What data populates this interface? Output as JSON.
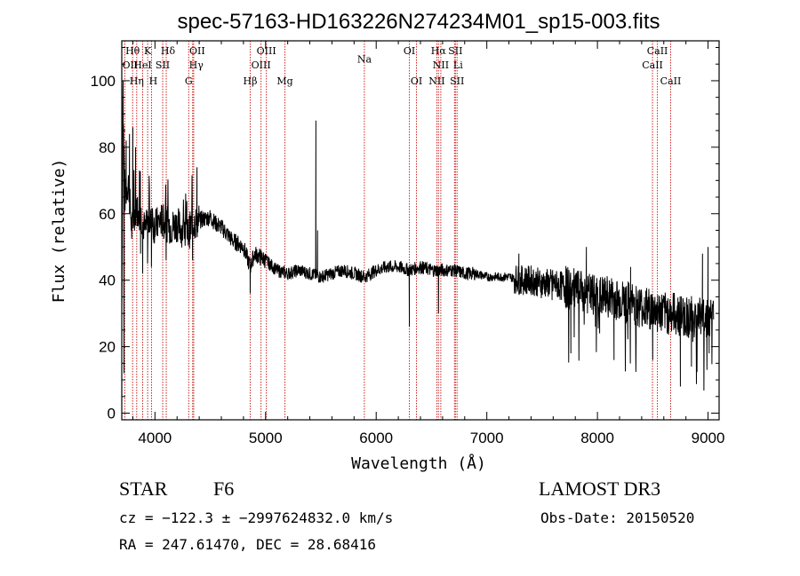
{
  "chart_data": {
    "type": "line",
    "title": "spec-57163-HD163226N274234M01_sp15-003.fits",
    "xlabel": "Wavelength (Å)",
    "ylabel": "Flux (relative)",
    "xlim": [
      3700,
      9100
    ],
    "ylim": [
      -2,
      112
    ],
    "x_ticks": [
      4000,
      5000,
      6000,
      7000,
      8000,
      9000
    ],
    "y_ticks": [
      0,
      20,
      40,
      60,
      80,
      100
    ],
    "grid": false,
    "line_color": "#000000",
    "marker_color": "#cc2222",
    "spectrum": {
      "anchors": [
        [
          3700,
          30
        ],
        [
          3710,
          92
        ],
        [
          3730,
          65
        ],
        [
          3760,
          70
        ],
        [
          3790,
          55
        ],
        [
          3830,
          62
        ],
        [
          3870,
          60
        ],
        [
          3910,
          55
        ],
        [
          3950,
          58
        ],
        [
          4000,
          56
        ],
        [
          4050,
          58
        ],
        [
          4100,
          57
        ],
        [
          4150,
          56
        ],
        [
          4200,
          57
        ],
        [
          4250,
          55
        ],
        [
          4300,
          54
        ],
        [
          4340,
          57
        ],
        [
          4400,
          58
        ],
        [
          4500,
          59
        ],
        [
          4550,
          57
        ],
        [
          4600,
          56
        ],
        [
          4700,
          52
        ],
        [
          4800,
          50
        ],
        [
          4861,
          44
        ],
        [
          4900,
          48
        ],
        [
          5000,
          46
        ],
        [
          5100,
          43
        ],
        [
          5200,
          42
        ],
        [
          5300,
          43
        ],
        [
          5400,
          42
        ],
        [
          5500,
          41
        ],
        [
          5600,
          42
        ],
        [
          5700,
          43
        ],
        [
          5800,
          42
        ],
        [
          5900,
          41
        ],
        [
          6000,
          43
        ],
        [
          6100,
          44
        ],
        [
          6200,
          44
        ],
        [
          6300,
          43
        ],
        [
          6400,
          44
        ],
        [
          6500,
          43
        ],
        [
          6600,
          43
        ],
        [
          6700,
          43
        ],
        [
          6800,
          42
        ],
        [
          6900,
          42
        ],
        [
          7000,
          41
        ],
        [
          7100,
          41
        ],
        [
          7200,
          41
        ],
        [
          7300,
          40
        ],
        [
          7400,
          40
        ],
        [
          7500,
          39
        ],
        [
          7600,
          39
        ],
        [
          7700,
          38
        ],
        [
          7800,
          37
        ],
        [
          7900,
          36
        ],
        [
          8000,
          35
        ],
        [
          8100,
          35
        ],
        [
          8200,
          34
        ],
        [
          8300,
          33
        ],
        [
          8400,
          32
        ],
        [
          8500,
          31
        ],
        [
          8600,
          30
        ],
        [
          8700,
          30
        ],
        [
          8800,
          29
        ],
        [
          8900,
          29
        ],
        [
          9000,
          29
        ],
        [
          9050,
          28
        ]
      ],
      "features": [
        [
          3712,
          100
        ],
        [
          3720,
          12
        ],
        [
          3740,
          82
        ],
        [
          3770,
          84
        ],
        [
          3800,
          86
        ],
        [
          3825,
          80
        ],
        [
          3860,
          73
        ],
        [
          3870,
          48
        ],
        [
          3889,
          42
        ],
        [
          3933,
          45
        ],
        [
          3968,
          44
        ],
        [
          4101,
          46
        ],
        [
          4340,
          46
        ],
        [
          4380,
          74
        ],
        [
          4861,
          36
        ],
        [
          5455,
          88
        ],
        [
          5470,
          55
        ],
        [
          6300,
          26
        ],
        [
          6563,
          30
        ],
        [
          7290,
          48
        ],
        [
          7300,
          36
        ],
        [
          7590,
          34
        ],
        [
          7760,
          18
        ],
        [
          7900,
          50
        ],
        [
          8020,
          24
        ],
        [
          8150,
          16
        ],
        [
          8300,
          44
        ],
        [
          8350,
          22
        ],
        [
          8500,
          16
        ],
        [
          8650,
          30
        ],
        [
          8750,
          8
        ],
        [
          8850,
          14
        ],
        [
          8950,
          48
        ],
        [
          9000,
          50
        ],
        [
          9010,
          18
        ]
      ]
    },
    "lines": [
      {
        "label": "Hθ",
        "x": 3798,
        "row": 1,
        "dx": 0
      },
      {
        "label": "K",
        "x": 3934,
        "row": 1,
        "dx": 0
      },
      {
        "label": "Hδ",
        "x": 4102,
        "row": 1,
        "dx": 2
      },
      {
        "label": "OII",
        "x": 4350,
        "row": 1,
        "dx": 4
      },
      {
        "label": "OIII",
        "x": 5007,
        "row": 1,
        "dx": 0
      },
      {
        "label": "OI",
        "x": 6300,
        "row": 1,
        "dx": 0
      },
      {
        "label": "Hα",
        "x": 6563,
        "row": 1,
        "dx": 0
      },
      {
        "label": "SII",
        "x": 6716,
        "row": 1,
        "dx": 0
      },
      {
        "label": "CaII",
        "x": 8542,
        "row": 1,
        "dx": 0
      },
      {
        "label": "OII",
        "x": 3727,
        "row": 2,
        "dx": 6
      },
      {
        "label": "HeI",
        "x": 3889,
        "row": 2,
        "dx": 0
      },
      {
        "label": "SII",
        "x": 4070,
        "row": 2,
        "dx": 0
      },
      {
        "label": "Hγ",
        "x": 4341,
        "row": 2,
        "dx": 4
      },
      {
        "label": "OIII",
        "x": 4959,
        "row": 2,
        "dx": 0
      },
      {
        "label": "NII",
        "x": 6584,
        "row": 2,
        "dx": 0
      },
      {
        "label": "Li",
        "x": 6708,
        "row": 2,
        "dx": 4
      },
      {
        "label": "CaII",
        "x": 8498,
        "row": 2,
        "dx": 0
      },
      {
        "label": "Hη",
        "x": 3835,
        "row": 3,
        "dx": 0
      },
      {
        "label": "H",
        "x": 3969,
        "row": 3,
        "dx": 2
      },
      {
        "label": "G",
        "x": 4305,
        "row": 3,
        "dx": 0
      },
      {
        "label": "Hβ",
        "x": 4861,
        "row": 3,
        "dx": 0
      },
      {
        "label": "Mg",
        "x": 5175,
        "row": 3,
        "dx": 0
      },
      {
        "label": "Na",
        "x": 5893,
        "row": 1.55,
        "dx": 0
      },
      {
        "label": "OI",
        "x": 6364,
        "row": 3,
        "dx": 0
      },
      {
        "label": "NII",
        "x": 6548,
        "row": 3,
        "dx": 0
      },
      {
        "label": "SII",
        "x": 6731,
        "row": 3,
        "dx": 0
      },
      {
        "label": "CaII",
        "x": 8662,
        "row": 3,
        "dx": 0
      }
    ]
  },
  "info": {
    "object_class": "STAR",
    "subclass": "F6",
    "survey": "LAMOST DR3",
    "cz": "cz = −122.3 ± −2997624832.0 km/s",
    "obs_date": "Obs-Date: 20150520",
    "coords": "RA = 247.61470, DEC =  28.68416"
  }
}
